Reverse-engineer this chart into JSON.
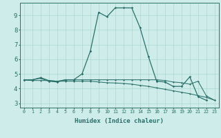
{
  "background_color": "#ceecea",
  "grid_color": "#a8d8d4",
  "line_color": "#2a706a",
  "x_ticks": [
    0,
    1,
    2,
    3,
    4,
    5,
    6,
    7,
    8,
    9,
    10,
    11,
    12,
    13,
    14,
    15,
    16,
    17,
    18,
    19,
    20,
    21,
    22,
    23
  ],
  "xlabel": "Humidex (Indice chaleur)",
  "ylim": [
    2.7,
    9.85
  ],
  "xlim": [
    -0.5,
    23.5
  ],
  "yticks": [
    3,
    4,
    5,
    6,
    7,
    8,
    9
  ],
  "line1_x": [
    0,
    1,
    2,
    3,
    4,
    5,
    6,
    7,
    8,
    9,
    10,
    11,
    12,
    13,
    14,
    15,
    16,
    17,
    18,
    19,
    20,
    21,
    22,
    23
  ],
  "line1_y": [
    4.6,
    4.6,
    4.75,
    4.55,
    4.5,
    4.6,
    4.6,
    4.6,
    4.6,
    4.6,
    4.6,
    4.6,
    4.6,
    4.6,
    4.6,
    4.6,
    4.6,
    4.55,
    4.45,
    4.4,
    4.3,
    4.5,
    3.5,
    3.2
  ],
  "line2_x": [
    0,
    1,
    2,
    3,
    4,
    5,
    6,
    7,
    8,
    9,
    10,
    11,
    12,
    13,
    14,
    15,
    16,
    17,
    18,
    19,
    20,
    21,
    22
  ],
  "line2_y": [
    4.6,
    4.6,
    4.7,
    4.5,
    4.45,
    4.6,
    4.6,
    5.0,
    6.55,
    9.2,
    8.9,
    9.5,
    9.5,
    9.5,
    8.15,
    6.2,
    4.5,
    4.45,
    4.15,
    4.15,
    4.8,
    3.45,
    3.2
  ],
  "line3_x": [
    0,
    1,
    2,
    3,
    4,
    5,
    6,
    7,
    8,
    9,
    10,
    11,
    12,
    13,
    14,
    15,
    16,
    17,
    18,
    19,
    20,
    21,
    22,
    23
  ],
  "line3_y": [
    4.58,
    4.55,
    4.55,
    4.55,
    4.5,
    4.5,
    4.5,
    4.5,
    4.5,
    4.45,
    4.4,
    4.38,
    4.35,
    4.3,
    4.22,
    4.15,
    4.05,
    3.95,
    3.85,
    3.75,
    3.65,
    3.52,
    3.4,
    3.2
  ]
}
